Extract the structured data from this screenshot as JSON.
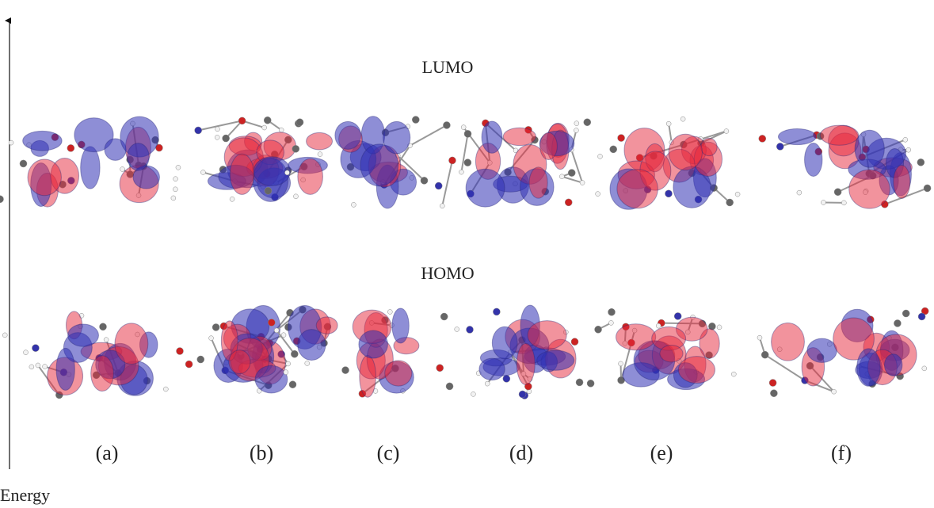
{
  "axis_label": "Energy",
  "rows": [
    "LUMO",
    "HOMO"
  ],
  "panels": [
    "(a)",
    "(b)",
    "(c)",
    "(d)",
    "(e)",
    "(f)"
  ]
}
